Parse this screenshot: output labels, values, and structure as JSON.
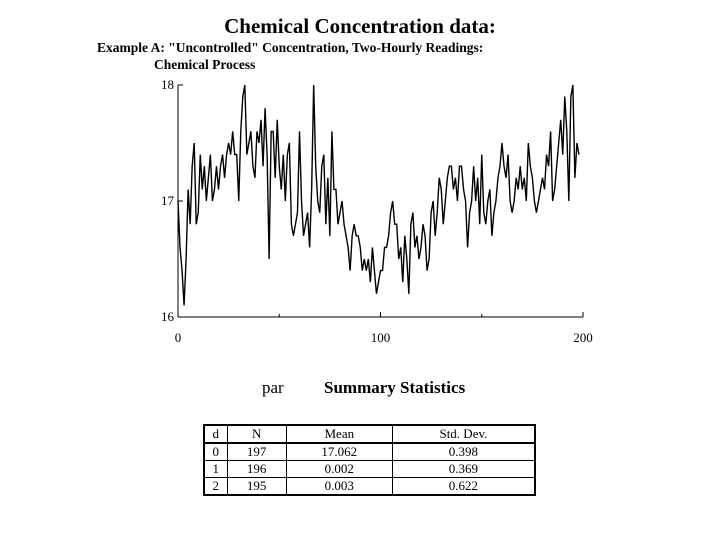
{
  "title": "Chemical Concentration data:",
  "subtitle_line1": "Example A:  \"Uncontrolled\" Concentration, Two-Hourly Readings:",
  "subtitle_line2": "Chemical Process",
  "chart_data": {
    "type": "line",
    "title": "Chemical Concentration data:",
    "xlabel": "",
    "ylabel": "",
    "xlim": [
      0,
      200
    ],
    "ylim": [
      16,
      18
    ],
    "xticks": [
      0,
      100,
      200
    ],
    "xtick_labels": [
      "0",
      "100",
      "200"
    ],
    "yticks": [
      16,
      17,
      18
    ],
    "ytick_labels": [
      "16",
      "17",
      "18"
    ],
    "grid": false,
    "series": [
      {
        "values": [
          17.0,
          16.6,
          16.4,
          16.1,
          16.5,
          17.1,
          16.8,
          17.3,
          17.5,
          16.8,
          16.9,
          17.4,
          17.1,
          17.3,
          17.0,
          17.2,
          17.4,
          17.0,
          17.1,
          17.3,
          17.1,
          17.3,
          17.4,
          17.2,
          17.4,
          17.5,
          17.4,
          17.6,
          17.4,
          17.4,
          17.0,
          17.6,
          17.9,
          18.0,
          17.4,
          17.5,
          17.6,
          17.3,
          17.2,
          17.6,
          17.5,
          17.7,
          17.3,
          17.8,
          17.4,
          16.5,
          17.6,
          17.6,
          17.2,
          17.7,
          17.3,
          17.1,
          17.4,
          17.0,
          17.4,
          17.5,
          16.8,
          16.7,
          16.8,
          16.9,
          17.6,
          17.0,
          16.7,
          16.8,
          16.9,
          16.6,
          17.1,
          18.0,
          17.3,
          17.0,
          16.9,
          17.3,
          17.4,
          16.8,
          17.2,
          16.7,
          17.6,
          17.1,
          17.1,
          16.8,
          16.9,
          17.0,
          16.8,
          16.7,
          16.6,
          16.4,
          16.7,
          16.8,
          16.7,
          16.7,
          16.6,
          16.4,
          16.5,
          16.4,
          16.5,
          16.3,
          16.6,
          16.4,
          16.2,
          16.3,
          16.4,
          16.4,
          16.6,
          16.6,
          16.7,
          16.9,
          17.0,
          16.8,
          16.8,
          16.5,
          16.6,
          16.3,
          16.7,
          16.5,
          16.2,
          16.8,
          16.9,
          16.6,
          16.7,
          16.5,
          16.6,
          16.8,
          16.7,
          16.4,
          16.5,
          16.9,
          17.0,
          16.7,
          16.9,
          17.2,
          17.1,
          16.8,
          17.0,
          17.2,
          17.3,
          17.3,
          17.1,
          17.2,
          17.0,
          17.3,
          17.3,
          17.1,
          17.0,
          16.6,
          16.9,
          17.0,
          17.3,
          17.0,
          17.2,
          16.8,
          17.4,
          16.9,
          16.8,
          17.0,
          17.1,
          16.7,
          16.9,
          17.0,
          17.2,
          17.3,
          17.5,
          17.3,
          17.2,
          17.4,
          17.0,
          16.9,
          17.0,
          17.2,
          17.1,
          17.3,
          17.1,
          17.2,
          17.0,
          17.5,
          17.3,
          17.2,
          17.0,
          16.9,
          17.0,
          17.1,
          17.2,
          17.1,
          17.4,
          17.3,
          17.6,
          17.0,
          17.1,
          17.3,
          17.5,
          17.7,
          17.4,
          17.9,
          17.6,
          17.0,
          17.9,
          18.0,
          17.2,
          17.5,
          17.4
        ]
      }
    ]
  },
  "stats": {
    "prefix": "par",
    "heading": "Summary Statistics",
    "columns": [
      "d",
      "N",
      "Mean",
      "Std. Dev."
    ],
    "rows": [
      [
        "0",
        "197",
        "17.062",
        "0.398"
      ],
      [
        "1",
        "196",
        "0.002",
        "0.369"
      ],
      [
        "2",
        "195",
        "0.003",
        "0.622"
      ]
    ]
  }
}
